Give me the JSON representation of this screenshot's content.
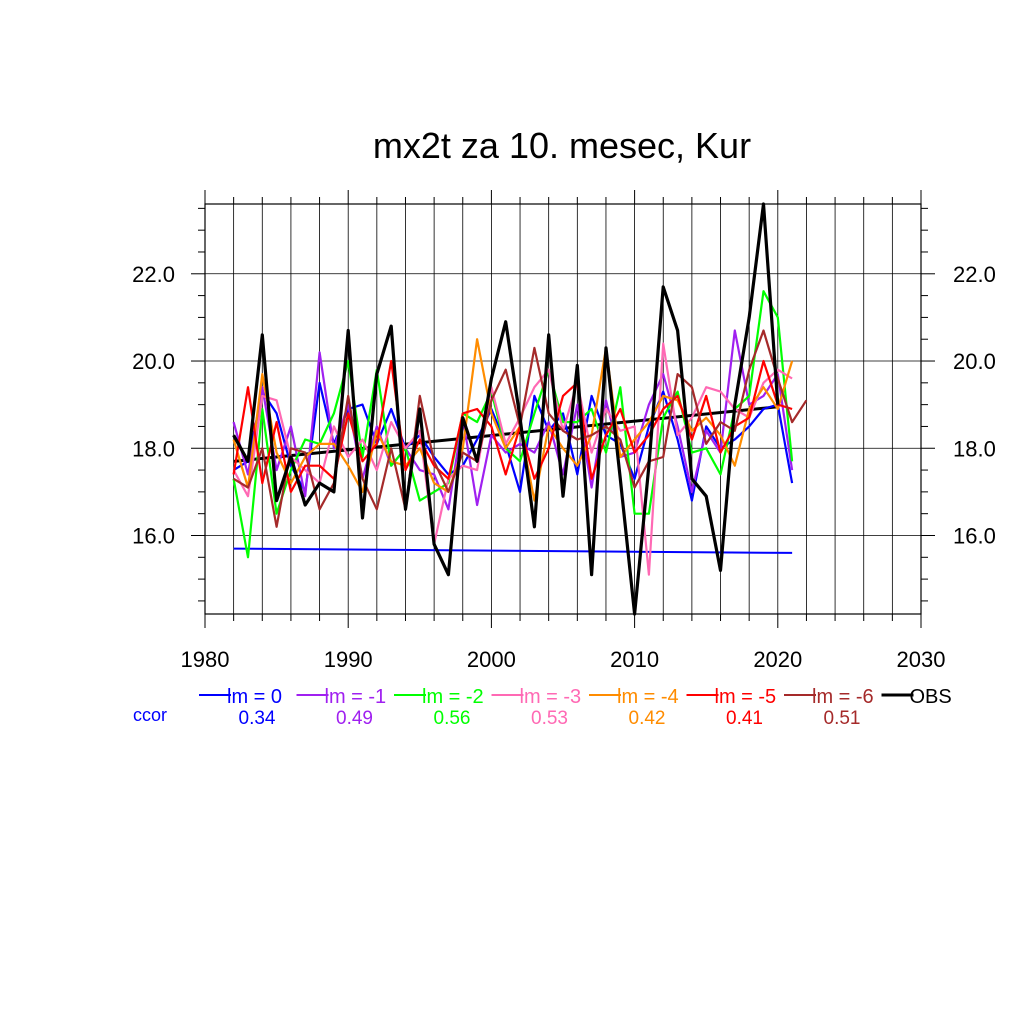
{
  "chart_data": {
    "type": "line",
    "title": "mx2t za 10. mesec, Kur",
    "xlabel": "",
    "ylabel": "",
    "xlim": [
      1980,
      2030
    ],
    "ylim": [
      14.2,
      23.6
    ],
    "x_ticks": [
      "1980",
      "1990",
      "2000",
      "2010",
      "2020",
      "2030"
    ],
    "y_ticks": [
      "16.0",
      "18.0",
      "20.0",
      "22.0"
    ],
    "grid": true,
    "legend_position": "bottom",
    "ccor_label": "ccor",
    "series": [
      {
        "name": "lm = 0",
        "ccor": "0.34",
        "color": "#0000ff",
        "x": [
          1982,
          1983,
          1984,
          1985,
          1986,
          1987,
          1988,
          1989,
          1990,
          1991,
          1992,
          1993,
          1994,
          1995,
          1996,
          1997,
          1998,
          1999,
          2000,
          2001,
          2002,
          2003,
          2004,
          2005,
          2006,
          2007,
          2008,
          2009,
          2010,
          2011,
          2012,
          2013,
          2014,
          2015,
          2016,
          2017,
          2018,
          2019,
          2020,
          2021
        ],
        "y": [
          17.5,
          17.7,
          19.3,
          18.8,
          17.6,
          17.0,
          19.5,
          18.1,
          18.9,
          19.0,
          18.1,
          18.9,
          18.0,
          18.3,
          17.8,
          17.4,
          17.6,
          18.2,
          18.9,
          18.1,
          17.0,
          19.2,
          18.4,
          18.8,
          17.4,
          19.2,
          18.3,
          18.1,
          17.3,
          18.5,
          19.3,
          18.2,
          16.8,
          18.5,
          18.0,
          18.2,
          18.5,
          18.9,
          19.0,
          17.2
        ]
      },
      {
        "name": "lm = -1",
        "ccor": "0.49",
        "color": "#a020f0",
        "x": [
          1982,
          1983,
          1984,
          1985,
          1986,
          1987,
          1988,
          1989,
          1990,
          1991,
          1992,
          1993,
          1994,
          1995,
          1996,
          1997,
          1998,
          1999,
          2000,
          2001,
          2002,
          2003,
          2004,
          2005,
          2006,
          2007,
          2008,
          2009,
          2010,
          2011,
          2012,
          2013,
          2014,
          2015,
          2016,
          2017,
          2018,
          2019,
          2020,
          2021
        ],
        "y": [
          18.6,
          17.4,
          19.4,
          17.5,
          18.5,
          16.9,
          20.2,
          18.0,
          19.0,
          17.3,
          18.5,
          17.6,
          18.0,
          17.5,
          17.4,
          16.6,
          18.7,
          16.7,
          18.3,
          17.9,
          18.1,
          17.9,
          18.6,
          17.4,
          19.0,
          17.1,
          19.1,
          17.8,
          17.9,
          19.0,
          19.7,
          18.5,
          17.0,
          18.4,
          17.9,
          20.7,
          19.0,
          19.2,
          19.7,
          17.5
        ]
      },
      {
        "name": "lm = -2",
        "ccor": "0.56",
        "color": "#00ff00",
        "x": [
          1982,
          1983,
          1984,
          1985,
          1986,
          1987,
          1988,
          1989,
          1990,
          1991,
          1992,
          1993,
          1994,
          1995,
          1996,
          1997,
          1998,
          1999,
          2000,
          2001,
          2002,
          2003,
          2004,
          2005,
          2006,
          2007,
          2008,
          2009,
          2010,
          2011,
          2012,
          2013,
          2014,
          2015,
          2016,
          2017,
          2018,
          2019,
          2020,
          2021
        ],
        "y": [
          17.3,
          15.5,
          18.9,
          16.5,
          17.5,
          18.2,
          18.1,
          18.8,
          20.0,
          17.8,
          19.8,
          17.6,
          18.0,
          16.8,
          17.0,
          17.2,
          18.8,
          18.6,
          19.3,
          18.0,
          17.7,
          18.8,
          19.8,
          18.6,
          18.6,
          18.9,
          17.9,
          19.4,
          16.5,
          16.5,
          18.7,
          19.3,
          17.9,
          18.0,
          17.4,
          18.9,
          19.2,
          21.6,
          21.0,
          17.7
        ]
      },
      {
        "name": "lm = -3",
        "ccor": "0.53",
        "color": "#ff69b4",
        "x": [
          1982,
          1983,
          1984,
          1985,
          1986,
          1987,
          1988,
          1989,
          1990,
          1991,
          1992,
          1993,
          1994,
          1995,
          1996,
          1997,
          1998,
          1999,
          2000,
          2001,
          2002,
          2003,
          2004,
          2005,
          2006,
          2007,
          2008,
          2009,
          2010,
          2011,
          2012,
          2013,
          2014,
          2015,
          2016,
          2017,
          2018,
          2019,
          2020,
          2021
        ],
        "y": [
          17.5,
          16.9,
          19.2,
          19.1,
          17.8,
          17.5,
          17.2,
          18.5,
          17.8,
          18.2,
          17.5,
          18.6,
          18.0,
          18.4,
          15.8,
          17.3,
          17.6,
          17.5,
          19.4,
          18.1,
          18.7,
          19.4,
          19.8,
          18.4,
          19.5,
          17.9,
          18.9,
          18.4,
          18.5,
          15.1,
          20.4,
          18.3,
          18.7,
          19.4,
          19.3,
          18.9,
          18.7,
          19.5,
          19.8,
          19.6
        ]
      },
      {
        "name": "lm = -4",
        "ccor": "0.42",
        "color": "#ff8c00",
        "x": [
          1982,
          1983,
          1984,
          1985,
          1986,
          1987,
          1988,
          1989,
          1990,
          1991,
          1992,
          1993,
          1994,
          1995,
          1996,
          1997,
          1998,
          1999,
          2000,
          2001,
          2002,
          2003,
          2004,
          2005,
          2006,
          2007,
          2008,
          2009,
          2010,
          2011,
          2012,
          2013,
          2014,
          2015,
          2016,
          2017,
          2018,
          2019,
          2020,
          2021
        ],
        "y": [
          18.2,
          17.1,
          19.7,
          17.9,
          17.2,
          17.8,
          18.1,
          18.1,
          17.6,
          17.0,
          18.4,
          17.7,
          17.6,
          18.0,
          17.2,
          17.0,
          18.0,
          20.5,
          18.8,
          18.0,
          18.5,
          16.8,
          18.5,
          18.0,
          17.6,
          18.3,
          20.3,
          17.8,
          18.2,
          18.6,
          19.2,
          19.1,
          18.4,
          18.7,
          18.3,
          17.6,
          18.9,
          19.4,
          18.9,
          20.0
        ]
      },
      {
        "name": "lm = -5",
        "ccor": "0.41",
        "color": "#ff0000",
        "x": [
          1982,
          1983,
          1984,
          1985,
          1986,
          1987,
          1988,
          1989,
          1990,
          1991,
          1992,
          1993,
          1994,
          1995,
          1996,
          1997,
          1998,
          1999,
          2000,
          2001,
          2002,
          2003,
          2004,
          2005,
          2006,
          2007,
          2008,
          2009,
          2010,
          2011,
          2012,
          2013,
          2014,
          2015,
          2016,
          2017,
          2018,
          2019,
          2020,
          2021
        ],
        "y": [
          17.4,
          19.4,
          17.2,
          18.6,
          17.0,
          17.6,
          17.6,
          17.3,
          18.8,
          17.7,
          18.1,
          20.0,
          17.5,
          18.2,
          17.6,
          17.3,
          18.8,
          18.9,
          18.5,
          17.4,
          18.5,
          17.3,
          18.0,
          19.2,
          19.5,
          17.3,
          18.3,
          18.9,
          17.9,
          18.3,
          18.9,
          19.2,
          18.2,
          19.2,
          17.9,
          18.5,
          18.7,
          20.0,
          19.0,
          18.9
        ]
      },
      {
        "name": "lm = -6",
        "ccor": "0.51",
        "color": "#a52a2a",
        "x": [
          1982,
          1983,
          1984,
          1985,
          1986,
          1987,
          1988,
          1989,
          1990,
          1991,
          1992,
          1993,
          1994,
          1995,
          1996,
          1997,
          1998,
          1999,
          2000,
          2001,
          2002,
          2003,
          2004,
          2005,
          2006,
          2007,
          2008,
          2009,
          2010,
          2011,
          2012,
          2013,
          2014,
          2015,
          2016,
          2017,
          2018,
          2019,
          2020,
          2021,
          2022
        ],
        "y": [
          17.3,
          17.1,
          18.0,
          16.2,
          18.0,
          17.9,
          16.6,
          17.2,
          19.2,
          17.3,
          16.6,
          18.0,
          16.6,
          19.2,
          17.7,
          17.0,
          17.9,
          17.7,
          19.1,
          19.8,
          18.5,
          20.3,
          18.8,
          18.4,
          18.2,
          18.3,
          18.5,
          18.2,
          17.1,
          17.7,
          17.8,
          19.7,
          19.4,
          18.1,
          18.6,
          18.4,
          19.8,
          20.7,
          19.6,
          18.6,
          19.1
        ]
      },
      {
        "name": "OBS",
        "ccor": "",
        "color": "#000000",
        "x": [
          1982,
          1983,
          1984,
          1985,
          1986,
          1987,
          1988,
          1989,
          1990,
          1991,
          1992,
          1993,
          1994,
          1995,
          1996,
          1997,
          1998,
          1999,
          2000,
          2001,
          2002,
          2003,
          2004,
          2005,
          2006,
          2007,
          2008,
          2009,
          2010,
          2011,
          2012,
          2013,
          2014,
          2015,
          2016,
          2017,
          2018,
          2019,
          2020
        ],
        "y": [
          18.3,
          17.7,
          20.6,
          16.8,
          17.8,
          16.7,
          17.2,
          17.0,
          20.7,
          16.4,
          19.7,
          20.8,
          16.6,
          18.9,
          15.8,
          15.1,
          18.7,
          17.7,
          19.6,
          20.9,
          18.7,
          16.2,
          20.6,
          16.9,
          19.9,
          15.1,
          20.3,
          17.3,
          14.2,
          17.6,
          21.7,
          20.7,
          17.3,
          16.9,
          15.2,
          19.0,
          21.0,
          23.6,
          19.0
        ]
      }
    ],
    "trend_lines": [
      {
        "color": "#0000ff",
        "x": [
          1982,
          2021
        ],
        "y": [
          15.7,
          15.6
        ]
      },
      {
        "color": "#000000",
        "x": [
          1982,
          2020
        ],
        "y": [
          17.7,
          18.95
        ]
      }
    ]
  }
}
